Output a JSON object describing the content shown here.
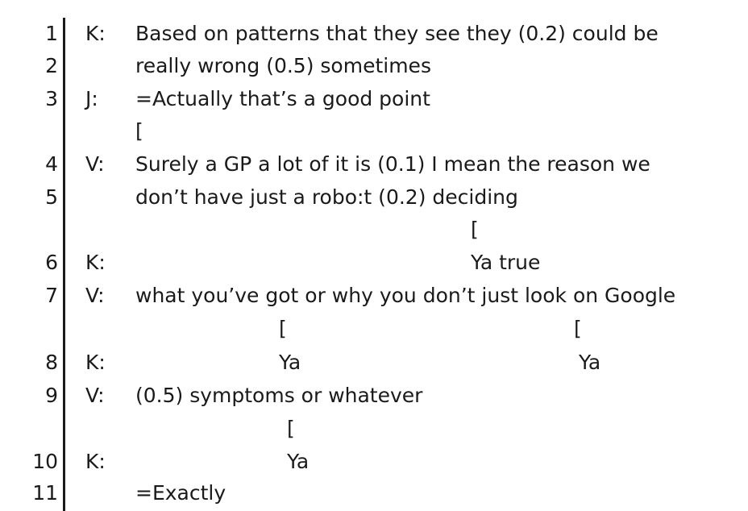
{
  "lines": [
    {
      "number": "1",
      "speaker": "K:",
      "text": "Based on patterns that they see they (0.2) could be"
    },
    {
      "number": "2",
      "speaker": "",
      "text": "really wrong (0.5) sometimes"
    },
    {
      "number": "3",
      "speaker": "J:",
      "text": "=Actually that’s a good point"
    },
    {
      "number": "",
      "speaker": "",
      "text": "["
    },
    {
      "number": "4",
      "speaker": "V:",
      "text": "Surely a GP a lot of it is (0.1) I mean the reason we"
    },
    {
      "number": "5",
      "speaker": "",
      "text": "don’t have just a robo:t (0.2) deciding"
    },
    {
      "number": "",
      "speaker": "",
      "text": "["
    },
    {
      "number": "6",
      "speaker": "K:",
      "text": "Ya true"
    },
    {
      "number": "7",
      "speaker": "V:",
      "text": "what you’ve got or why you don’t just look on Google"
    },
    {
      "number": "",
      "speaker": "",
      "text": "[",
      "text2": "["
    },
    {
      "number": "8",
      "speaker": "K:",
      "text": "Ya",
      "text2": "Ya"
    },
    {
      "number": "9",
      "speaker": "V:",
      "text": "(0.5) symptoms or whatever"
    },
    {
      "number": "",
      "speaker": "",
      "text": "["
    },
    {
      "number": "10",
      "speaker": "K:",
      "text": "Ya"
    },
    {
      "number": "11",
      "speaker": "",
      "text": "=Exactly"
    }
  ]
}
